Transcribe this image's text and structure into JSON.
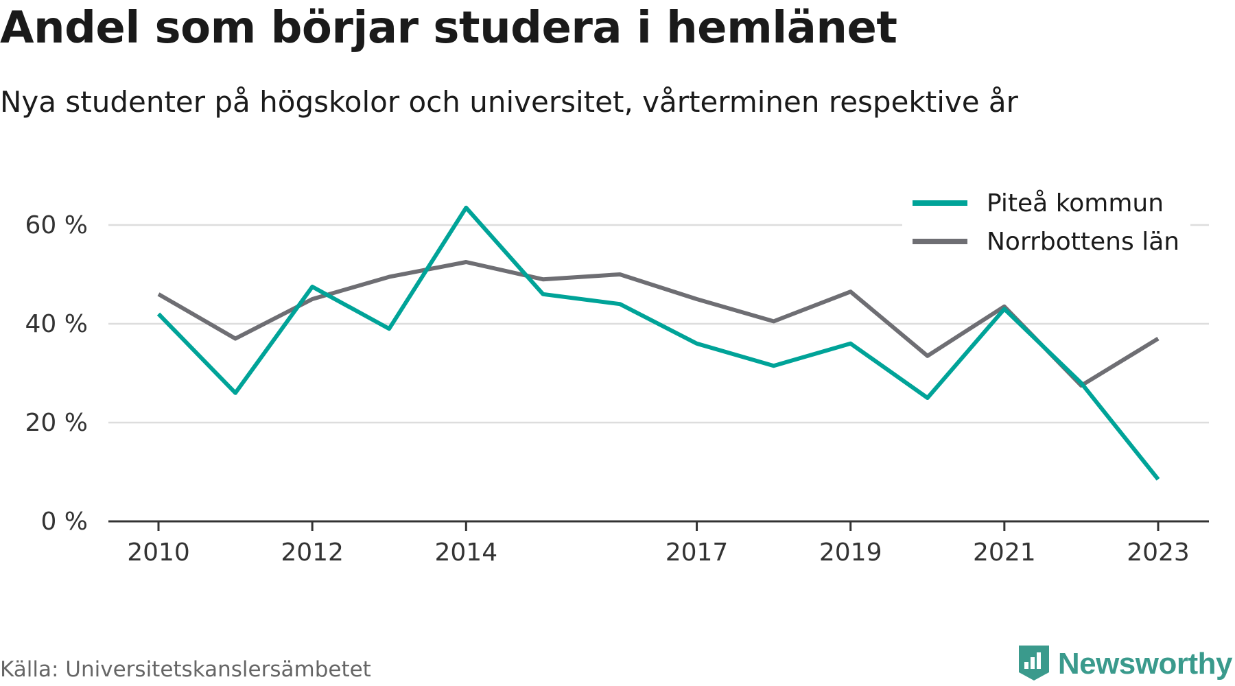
{
  "header": {
    "title": "Andel som börjar studera i hemlänet",
    "subtitle": "Nya studenter på högskolor och universitet, vårterminen respektive år"
  },
  "footer": {
    "source": "Källa: Universitetskanslersämbetet",
    "brand": "Newsworthy",
    "brand_icon": "bar-chart-shield-icon"
  },
  "colors": {
    "pitea": "#00a398",
    "norrbotten": "#6e6e73",
    "grid": "#dddddd",
    "axis": "#333333",
    "brand": "#3a9a8c"
  },
  "chart_data": {
    "type": "line",
    "x": [
      2010,
      2011,
      2012,
      2013,
      2014,
      2015,
      2016,
      2017,
      2018,
      2019,
      2020,
      2021,
      2022,
      2023
    ],
    "x_tick_labels": [
      "2010",
      "2012",
      "2014",
      "2017",
      "2019",
      "2021",
      "2023"
    ],
    "x_tick_values": [
      2010,
      2012,
      2014,
      2017,
      2019,
      2021,
      2023
    ],
    "y_tick_labels": [
      "0 %",
      "20 %",
      "40 %",
      "60 %"
    ],
    "y_tick_values": [
      0,
      20,
      40,
      60
    ],
    "ylim": [
      0,
      70
    ],
    "grid": true,
    "legend_position": "top-right",
    "series": [
      {
        "name": "Piteå kommun",
        "color": "#00a398",
        "values": [
          42,
          26,
          47.5,
          39,
          63.5,
          46,
          44,
          36,
          31.5,
          36,
          25,
          43,
          28,
          8.5
        ]
      },
      {
        "name": "Norrbottens län",
        "color": "#6e6e73",
        "values": [
          46,
          37,
          45,
          49.5,
          52.5,
          49,
          50,
          45,
          40.5,
          46.5,
          33.5,
          43.5,
          27.5,
          37
        ]
      }
    ]
  }
}
